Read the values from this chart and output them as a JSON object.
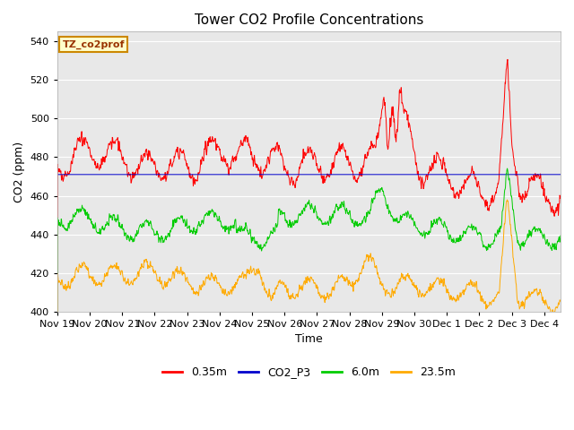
{
  "title": "Tower CO2 Profile Concentrations",
  "xlabel": "Time",
  "ylabel": "CO2 (ppm)",
  "ylim": [
    400,
    545
  ],
  "yticks": [
    400,
    420,
    440,
    460,
    480,
    500,
    520,
    540
  ],
  "background_color": "#ffffff",
  "plot_bg_color": "#e8e8e8",
  "grid_color": "#ffffff",
  "annotation_text": "TZ_co2prof",
  "annotation_bg": "#ffffcc",
  "annotation_border": "#cc8800",
  "annotation_color": "#993300",
  "legend_labels": [
    "0.35m",
    "CO2_P3",
    "6.0m",
    "23.5m"
  ],
  "legend_colors": [
    "#ff0000",
    "#0000cc",
    "#00cc00",
    "#ffaa00"
  ],
  "num_points": 1400,
  "date_start": 19.0,
  "date_end": 34.5,
  "linewidth": 0.7
}
